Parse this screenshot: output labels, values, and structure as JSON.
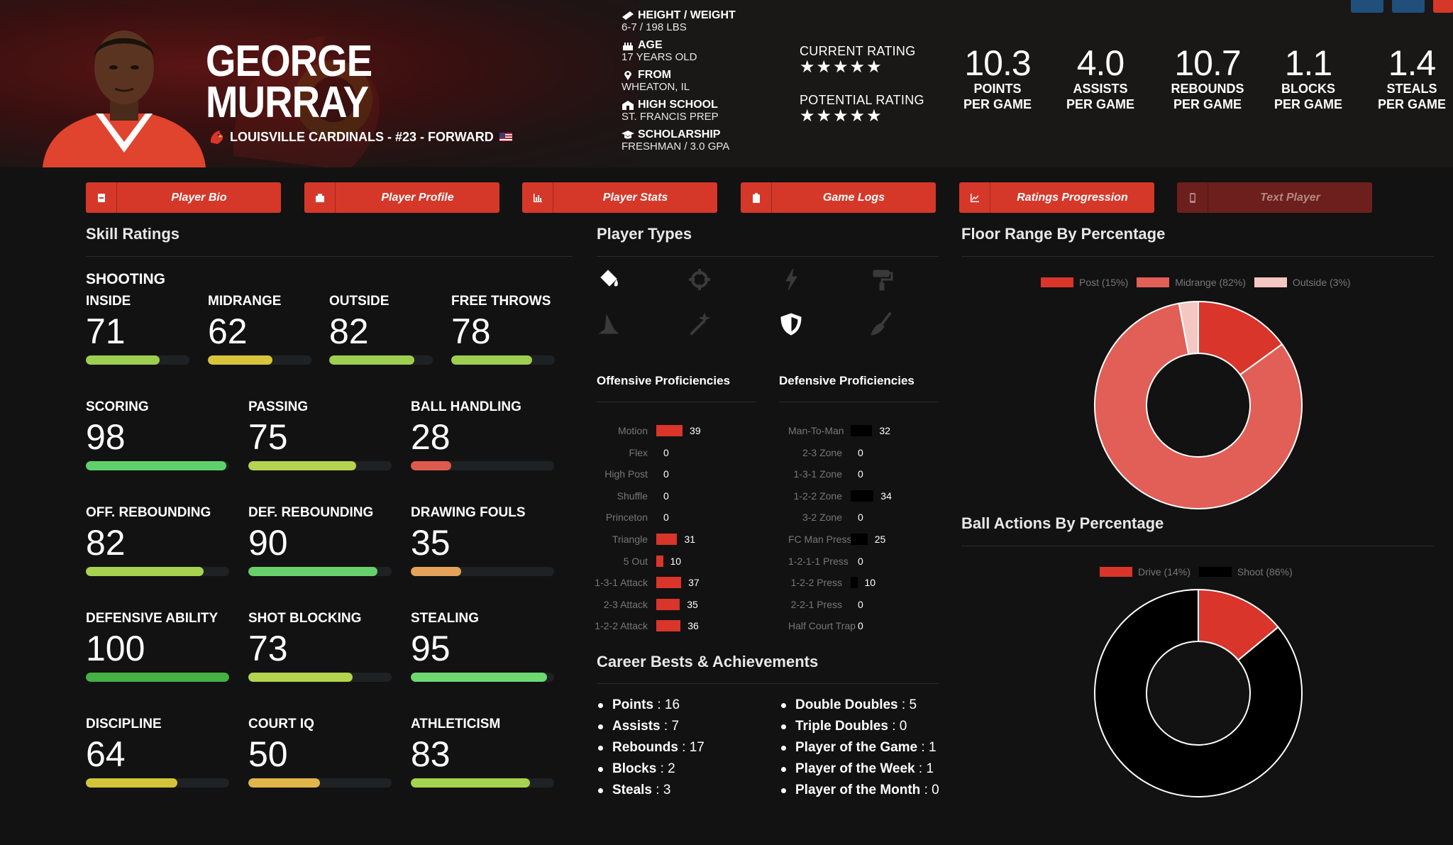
{
  "player": {
    "first_name": "GEORGE",
    "last_name": "MURRAY",
    "team_line": "LOUISVILLE CARDINALS - #23 - FORWARD"
  },
  "bio": [
    {
      "icon": "ruler-icon",
      "label": "HEIGHT / WEIGHT",
      "value": "6-7 / 198 LBS"
    },
    {
      "icon": "birthday-cake-icon",
      "label": "AGE",
      "value": "17 YEARS OLD"
    },
    {
      "icon": "map-marker-icon",
      "label": "FROM",
      "value": "WHEATON, IL"
    },
    {
      "icon": "school-icon",
      "label": "HIGH SCHOOL",
      "value": "ST. FRANCIS PREP"
    },
    {
      "icon": "graduation-cap-icon",
      "label": "SCHOLARSHIP",
      "value": "FRESHMAN / 3.0 GPA"
    }
  ],
  "ratings": {
    "current_label": "CURRENT RATING",
    "current_stars": 5,
    "potential_label": "POTENTIAL RATING",
    "potential_stars": 5,
    "star_glyphs": "★★★★★"
  },
  "stats": [
    {
      "value": "10.3",
      "label1": "POINTS",
      "label2": "PER GAME"
    },
    {
      "value": "4.0",
      "label1": "ASSISTS",
      "label2": "PER GAME"
    },
    {
      "value": "10.7",
      "label1": "REBOUNDS",
      "label2": "PER GAME"
    },
    {
      "value": "1.1",
      "label1": "BLOCKS",
      "label2": "PER GAME"
    },
    {
      "value": "1.4",
      "label1": "STEALS",
      "label2": "PER GAME"
    }
  ],
  "nav": [
    {
      "label": "Player Bio",
      "icon": "id-card-icon"
    },
    {
      "label": "Player Profile",
      "icon": "profile-icon"
    },
    {
      "label": "Player Stats",
      "icon": "bar-chart-icon"
    },
    {
      "label": "Game Logs",
      "icon": "clipboard-icon"
    },
    {
      "label": "Ratings Progression",
      "icon": "line-chart-icon"
    },
    {
      "label": "Text Player",
      "icon": "mobile-icon",
      "disabled": true
    }
  ],
  "sections": {
    "skill_ratings": "Skill Ratings",
    "player_types": "Player Types",
    "floor_range": "Floor Range By Percentage",
    "ball_actions": "Ball Actions By Percentage",
    "offensive_prof": "Offensive Proficiencies",
    "defensive_prof": "Defensive Proficiencies",
    "career": "Career Bests & Achievements"
  },
  "skills": {
    "shooting_title": "SHOOTING",
    "items": [
      {
        "name": "INSIDE",
        "value": "71",
        "level": 71,
        "color": "#9dce4f"
      },
      {
        "name": "MIDRANGE",
        "value": "62",
        "level": 62,
        "color": "#d8c43a"
      },
      {
        "name": "OUTSIDE",
        "value": "82",
        "level": 82,
        "color": "#9dce4f"
      },
      {
        "name": "FREE THROWS",
        "value": "78",
        "level": 78,
        "color": "#9dce4f"
      },
      {
        "name": "SCORING",
        "value": "98",
        "level": 98,
        "color": "#5fd16c"
      },
      {
        "name": "PASSING",
        "value": "75",
        "level": 75,
        "color": "#b4d34f"
      },
      {
        "name": "BALL HANDLING",
        "value": "28",
        "level": 28,
        "color": "#de5a4f"
      },
      {
        "name": "OFF. REBOUNDING",
        "value": "82",
        "level": 82,
        "color": "#a6d24f"
      },
      {
        "name": "DEF. REBOUNDING",
        "value": "90",
        "level": 90,
        "color": "#68d06a"
      },
      {
        "name": "DRAWING FOULS",
        "value": "35",
        "level": 35,
        "color": "#e5a25a"
      },
      {
        "name": "DEFENSIVE ABILITY",
        "value": "100",
        "level": 100,
        "color": "#45b044"
      },
      {
        "name": "SHOT BLOCKING",
        "value": "73",
        "level": 73,
        "color": "#b4d34f"
      },
      {
        "name": "STEALING",
        "value": "95",
        "level": 95,
        "color": "#6dd872"
      },
      {
        "name": "DISCIPLINE",
        "value": "64",
        "level": 64,
        "color": "#d4c43a"
      },
      {
        "name": "COURT IQ",
        "value": "50",
        "level": 50,
        "color": "#e0b54a"
      },
      {
        "name": "ATHLETICISM",
        "value": "83",
        "level": 83,
        "color": "#a6d24f"
      }
    ]
  },
  "player_types": [
    {
      "icon": "paint-bucket-icon",
      "active": true
    },
    {
      "icon": "crosshair-icon",
      "active": false
    },
    {
      "icon": "lightning-icon",
      "active": false
    },
    {
      "icon": "paint-roller-icon",
      "active": false
    },
    {
      "icon": "wizard-hat-icon",
      "active": false
    },
    {
      "icon": "magic-wand-icon",
      "active": false
    },
    {
      "icon": "shield-icon",
      "active": true
    },
    {
      "icon": "broom-icon",
      "active": false
    }
  ],
  "offensive": [
    {
      "name": "Motion",
      "value": 39
    },
    {
      "name": "Flex",
      "value": 0
    },
    {
      "name": "High Post",
      "value": 0
    },
    {
      "name": "Shuffle",
      "value": 0
    },
    {
      "name": "Princeton",
      "value": 0
    },
    {
      "name": "Triangle",
      "value": 31
    },
    {
      "name": "5 Out",
      "value": 10
    },
    {
      "name": "1-3-1 Attack",
      "value": 37
    },
    {
      "name": "2-3 Attack",
      "value": 35
    },
    {
      "name": "1-2-2 Attack",
      "value": 36
    }
  ],
  "defensive": [
    {
      "name": "Man-To-Man",
      "value": 32
    },
    {
      "name": "2-3 Zone",
      "value": 0
    },
    {
      "name": "1-3-1 Zone",
      "value": 0
    },
    {
      "name": "1-2-2 Zone",
      "value": 34
    },
    {
      "name": "3-2 Zone",
      "value": 0
    },
    {
      "name": "FC Man Press",
      "value": 25
    },
    {
      "name": "1-2-1-1 Press",
      "value": 0
    },
    {
      "name": "1-2-2 Press",
      "value": 10
    },
    {
      "name": "2-2-1 Press",
      "value": 0
    },
    {
      "name": "Half Court Trap",
      "value": 0
    }
  ],
  "achievements_left": [
    {
      "k": "Points",
      "v": "16"
    },
    {
      "k": "Assists",
      "v": "7"
    },
    {
      "k": "Rebounds",
      "v": "17"
    },
    {
      "k": "Blocks",
      "v": "2"
    },
    {
      "k": "Steals",
      "v": "3"
    }
  ],
  "achievements_right": [
    {
      "k": "Double Doubles",
      "v": "5"
    },
    {
      "k": "Triple Doubles",
      "v": "0"
    },
    {
      "k": "Player of the Game",
      "v": "1"
    },
    {
      "k": "Player of the Week",
      "v": "1"
    },
    {
      "k": "Player of the Month",
      "v": "0"
    }
  ],
  "chart_data": [
    {
      "type": "pie",
      "title": "Floor Range By Percentage",
      "categories": [
        "Post",
        "Midrange",
        "Outside"
      ],
      "values": [
        15,
        82,
        3
      ],
      "legend": [
        "Post (15%)",
        "Midrange (82%)",
        "Outside (3%)"
      ],
      "colors": [
        "#d9352a",
        "#e15f57",
        "#f5c7c2"
      ]
    },
    {
      "type": "pie",
      "title": "Ball Actions By Percentage",
      "categories": [
        "Drive",
        "Shoot"
      ],
      "values": [
        14,
        86
      ],
      "legend": [
        "Drive (14%)",
        "Shoot (86%)"
      ],
      "colors": [
        "#d9352a",
        "#000000"
      ]
    }
  ],
  "colors": {
    "accent": "#d53829",
    "offense_bar": "#d9352a",
    "defense_bar": "#000000"
  }
}
